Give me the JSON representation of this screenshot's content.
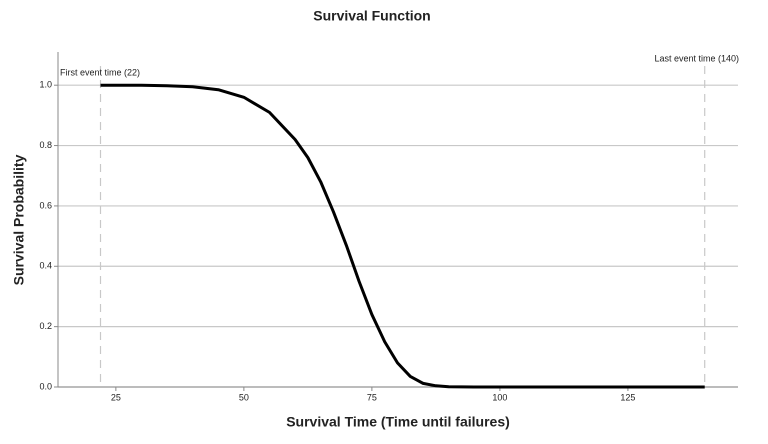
{
  "chart_data": {
    "type": "line",
    "title": "Survival Function",
    "xlabel": "Survival Time (Time until failures)",
    "ylabel": "Survival Probability",
    "x": [
      22,
      30,
      35,
      40,
      45,
      50,
      55,
      60,
      62.5,
      65,
      67.5,
      70,
      72.5,
      75,
      77.5,
      80,
      82.5,
      85,
      87.5,
      90,
      95,
      100,
      110,
      120,
      130,
      140
    ],
    "values": [
      1.0,
      1.0,
      0.998,
      0.995,
      0.985,
      0.96,
      0.91,
      0.82,
      0.76,
      0.68,
      0.58,
      0.47,
      0.35,
      0.24,
      0.15,
      0.08,
      0.035,
      0.012,
      0.004,
      0.001,
      0,
      0,
      0,
      0,
      0,
      0
    ],
    "color": "#000000",
    "xlim": [
      13.7,
      146.5
    ],
    "ylim": [
      0,
      1.11
    ],
    "xticks": [
      25,
      50,
      75,
      100,
      125
    ],
    "yticks": [
      {
        "value": 0,
        "label": "0.0"
      },
      {
        "value": 0.2,
        "label": "0.2"
      },
      {
        "value": 0.4,
        "label": "0.4"
      },
      {
        "value": 0.6,
        "label": "0.6"
      },
      {
        "value": 0.8,
        "label": "0.8"
      },
      {
        "value": 1.0,
        "label": "1.0"
      }
    ],
    "grid": true,
    "reference_lines": [
      {
        "x": 22,
        "label": "First event time (22)"
      },
      {
        "x": 140,
        "label": "Last event time (140)"
      }
    ]
  }
}
